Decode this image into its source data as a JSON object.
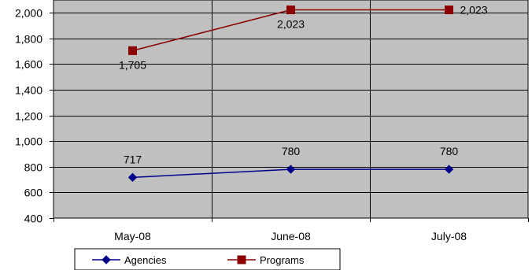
{
  "chart_data": {
    "type": "line",
    "categories": [
      "May-08",
      "June-08",
      "July-08"
    ],
    "series": [
      {
        "name": "Agencies",
        "values": [
          717,
          780,
          780
        ],
        "labels": [
          "717",
          "780",
          "780"
        ],
        "color": "#00008B",
        "marker": "diamond"
      },
      {
        "name": "Programs",
        "values": [
          1705,
          2023,
          2023
        ],
        "labels": [
          "1,705",
          "2,023",
          "2,023"
        ],
        "color": "#8B0000",
        "marker": "square"
      }
    ],
    "ylim": [
      400,
      2100
    ],
    "yticks": [
      400,
      600,
      800,
      1000,
      1200,
      1400,
      1600,
      1800,
      2000
    ],
    "ytick_labels": [
      "400",
      "600",
      "800",
      "1,000",
      "1,200",
      "1,400",
      "1,600",
      "1,800",
      "2,000"
    ],
    "title": "",
    "xlabel": "",
    "ylabel": "",
    "grid": true,
    "legend_position": "bottom-left",
    "plot_background": "#C0C0C0"
  }
}
